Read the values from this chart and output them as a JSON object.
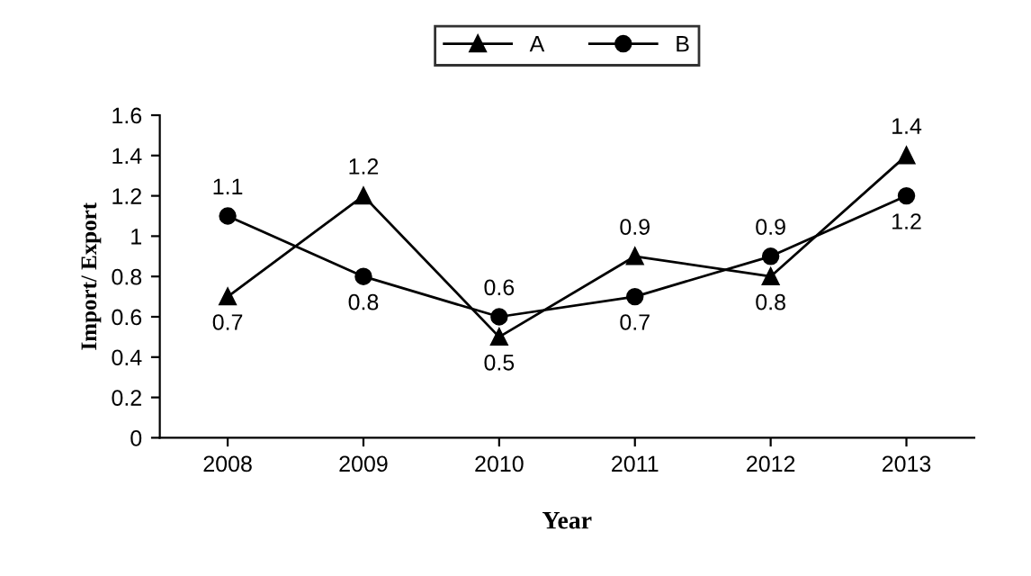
{
  "chart_data": {
    "type": "line",
    "xlabel": "Year",
    "ylabel": "Import/ Export",
    "categories": [
      "2008",
      "2009",
      "2010",
      "2011",
      "2012",
      "2013"
    ],
    "series": [
      {
        "name": "A",
        "color": "#000000",
        "marker": "triangle",
        "values": [
          0.7,
          1.2,
          0.5,
          0.9,
          0.8,
          1.4
        ]
      },
      {
        "name": "B",
        "color": "#000000",
        "marker": "circle",
        "values": [
          1.1,
          0.8,
          0.6,
          0.7,
          0.9,
          1.2
        ]
      }
    ],
    "ylim": [
      0,
      1.6
    ],
    "yticks": [
      0,
      0.2,
      0.4,
      0.6,
      0.8,
      1,
      1.2,
      1.4,
      1.6
    ],
    "data_labels": true,
    "legend": "top",
    "grid": false
  }
}
